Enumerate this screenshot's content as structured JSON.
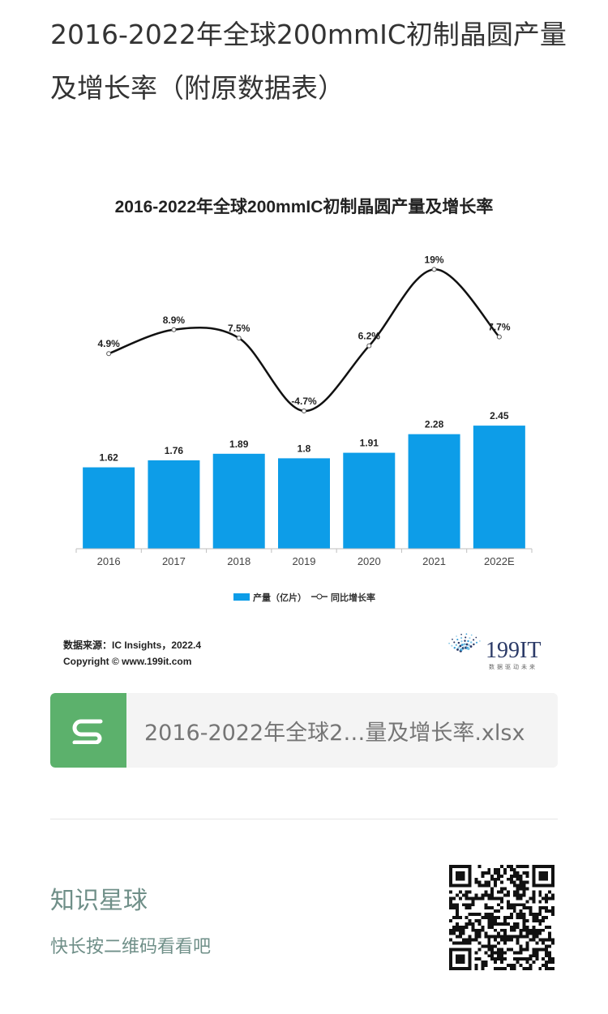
{
  "article": {
    "title": "2016-2022年全球200mmIC初制晶圆产量及增长率（附原数据表）"
  },
  "chart_data": {
    "type": "bar",
    "title": "2016-2022年全球200mmIC初制晶圆产量及增长率",
    "categories": [
      "2016",
      "2017",
      "2018",
      "2019",
      "2020",
      "2021",
      "2022E"
    ],
    "series": [
      {
        "name": "产量（亿片）",
        "type": "bar",
        "values": [
          1.62,
          1.76,
          1.89,
          1.8,
          1.91,
          2.28,
          2.45
        ],
        "labels": [
          "1.62",
          "1.76",
          "1.89",
          "1.8",
          "1.91",
          "2.28",
          "2.45"
        ],
        "color": "#0d9de8"
      },
      {
        "name": "同比增长率",
        "type": "line",
        "values": [
          4.9,
          8.9,
          7.5,
          -4.7,
          6.2,
          19,
          7.7
        ],
        "labels": [
          "4.9%",
          "8.9%",
          "7.5%",
          "-4.7%",
          "6.2%",
          "19%",
          "7.7%"
        ],
        "color": "#111111"
      }
    ],
    "legend_position": "bottom",
    "grid": false,
    "source_label": "数据来源：IC Insights，2022.4",
    "copyright_label": "Copyright © www.199it.com",
    "brand": {
      "logo_text": "199IT",
      "tagline": "数据驱动未来"
    }
  },
  "attachment": {
    "file_name": "2016-2022年全球2…量及增长率.xlsx",
    "icon": "spreadsheet-icon",
    "icon_color": "#5cb16c"
  },
  "promo": {
    "title": "知识星球",
    "subtitle": "快长按二维码看看吧",
    "qr_icon": "qr-code-icon"
  }
}
